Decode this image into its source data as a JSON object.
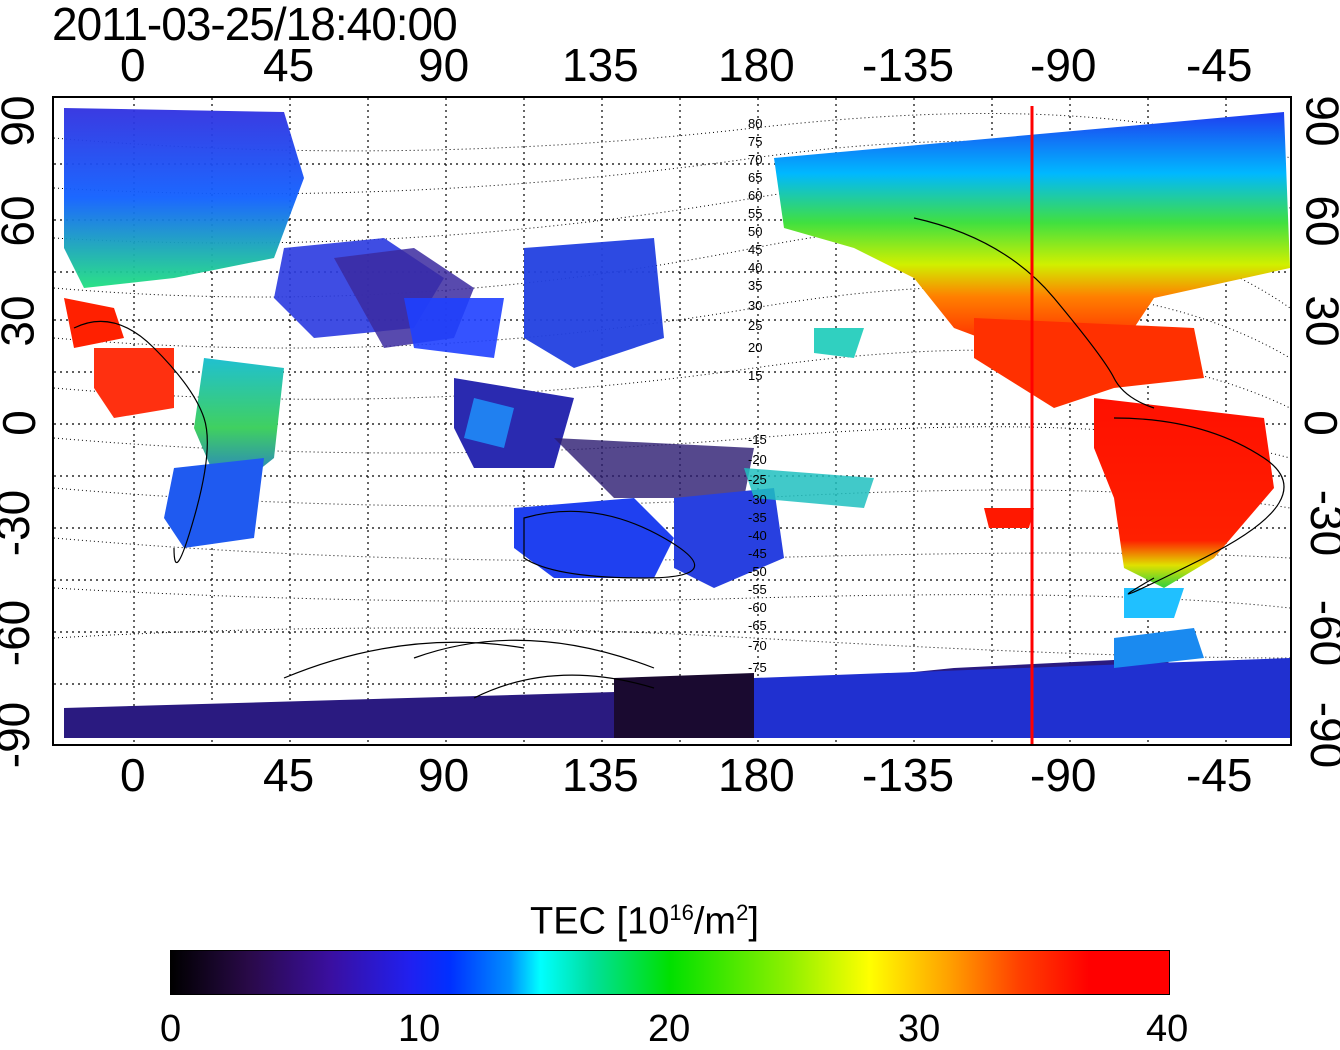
{
  "timestamp": "2011-03-25/18:40:00",
  "axes": {
    "top_ticks": [
      "0",
      "45",
      "90",
      "135",
      "180",
      "-135",
      "-90",
      "-45"
    ],
    "bottom_ticks": [
      "0",
      "45",
      "90",
      "135",
      "180",
      "-135",
      "-90",
      "-45"
    ],
    "left_ticks": [
      "90",
      "60",
      "30",
      "0",
      "-30",
      "-60",
      "-90"
    ],
    "right_ticks": [
      "90",
      "60",
      "30",
      "0",
      "-30",
      "-60",
      "-90"
    ]
  },
  "contour_labels": [
    "80",
    "75",
    "70",
    "65",
    "60",
    "55",
    "50",
    "45",
    "40",
    "35",
    "30",
    "25",
    "20",
    "15",
    "-15",
    "-20",
    "-25",
    "-30",
    "-35",
    "-40",
    "-45",
    "-50",
    "-55",
    "-60",
    "-65",
    "-70",
    "-75"
  ],
  "terminator_line": {
    "longitude": -100,
    "color": "#ff0000"
  },
  "colorbar": {
    "title": "TEC  [10",
    "title_sup": "16",
    "title_unit": "/m",
    "title_sup2": "2",
    "title_end": "]",
    "ticks": [
      "0",
      "10",
      "20",
      "30",
      "40"
    ]
  }
}
